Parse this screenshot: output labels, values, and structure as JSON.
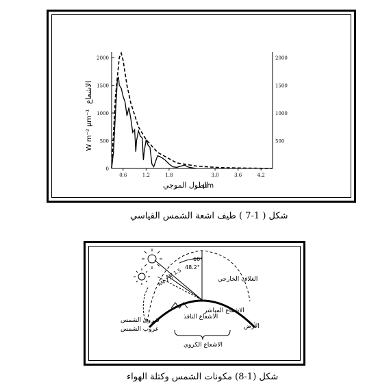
{
  "figure1": {
    "caption": "شكل ( 1-7 ) طيف اشعة الشمس القياسي",
    "ylabel": "الاشعاع",
    "yunit": "W m⁻² µm⁻¹",
    "xlabel": "الطول الموجي",
    "xunit": "µm",
    "yticks_left": [
      "2000",
      "1500",
      "1000",
      "500",
      "0"
    ],
    "yticks_right": [
      "2000",
      "1500",
      "1000",
      "500"
    ],
    "xticks": [
      "0.6",
      "1.2",
      "1.8",
      "3.0",
      "3.6",
      "4.2"
    ],
    "chart_data": {
      "type": "line",
      "xlabel": "الطول الموجي",
      "ylabel": "الاشعاع",
      "xlim": [
        0.3,
        4.5
      ],
      "ylim": [
        0,
        2100
      ],
      "series": [
        {
          "x": [
            0.3,
            0.4,
            0.5,
            0.55,
            0.6,
            0.7,
            0.8,
            1.0,
            1.2,
            1.5,
            2.0,
            2.5,
            3.0,
            3.5,
            4.0,
            4.5
          ],
          "values": [
            0,
            1300,
            2000,
            2080,
            1950,
            1500,
            1180,
            750,
            520,
            290,
            100,
            45,
            20,
            10,
            5,
            0
          ]
        },
        {
          "x": [
            0.3,
            0.35,
            0.4,
            0.45,
            0.48,
            0.5,
            0.55,
            0.6,
            0.65,
            0.7,
            0.75,
            0.8,
            0.85,
            0.9,
            0.93,
            0.95,
            1.0,
            1.05,
            1.1,
            1.13,
            1.15,
            1.2,
            1.25,
            1.3,
            1.35,
            1.4,
            1.45,
            1.5,
            1.6,
            1.7,
            1.8,
            1.9,
            2.0,
            2.1,
            2.2,
            2.3,
            2.5
          ],
          "values": [
            0,
            300,
            1000,
            1600,
            1650,
            1500,
            1450,
            1300,
            1200,
            950,
            1100,
            900,
            650,
            700,
            300,
            500,
            680,
            580,
            550,
            150,
            300,
            520,
            420,
            380,
            80,
            30,
            130,
            230,
            200,
            150,
            80,
            30,
            20,
            40,
            60,
            25,
            0
          ]
        }
      ]
    }
  },
  "figure2": {
    "caption": "شكل (1-8) مكونات الشمس وكتلة الهواء",
    "labels": {
      "sunrise": "شروق الشمس",
      "sunset": "غروب الشمس",
      "atmosphere": "الغلاف الخارجي",
      "earth": "الأرض",
      "direct": "الاشعاع المباشر",
      "diffuse": "الاشعاع النافذ",
      "global": "الاشعاع الكروي",
      "am1": "AM 1.5",
      "am2": "AM 2.0",
      "a60": "60°",
      "a48": "48.2°"
    }
  }
}
